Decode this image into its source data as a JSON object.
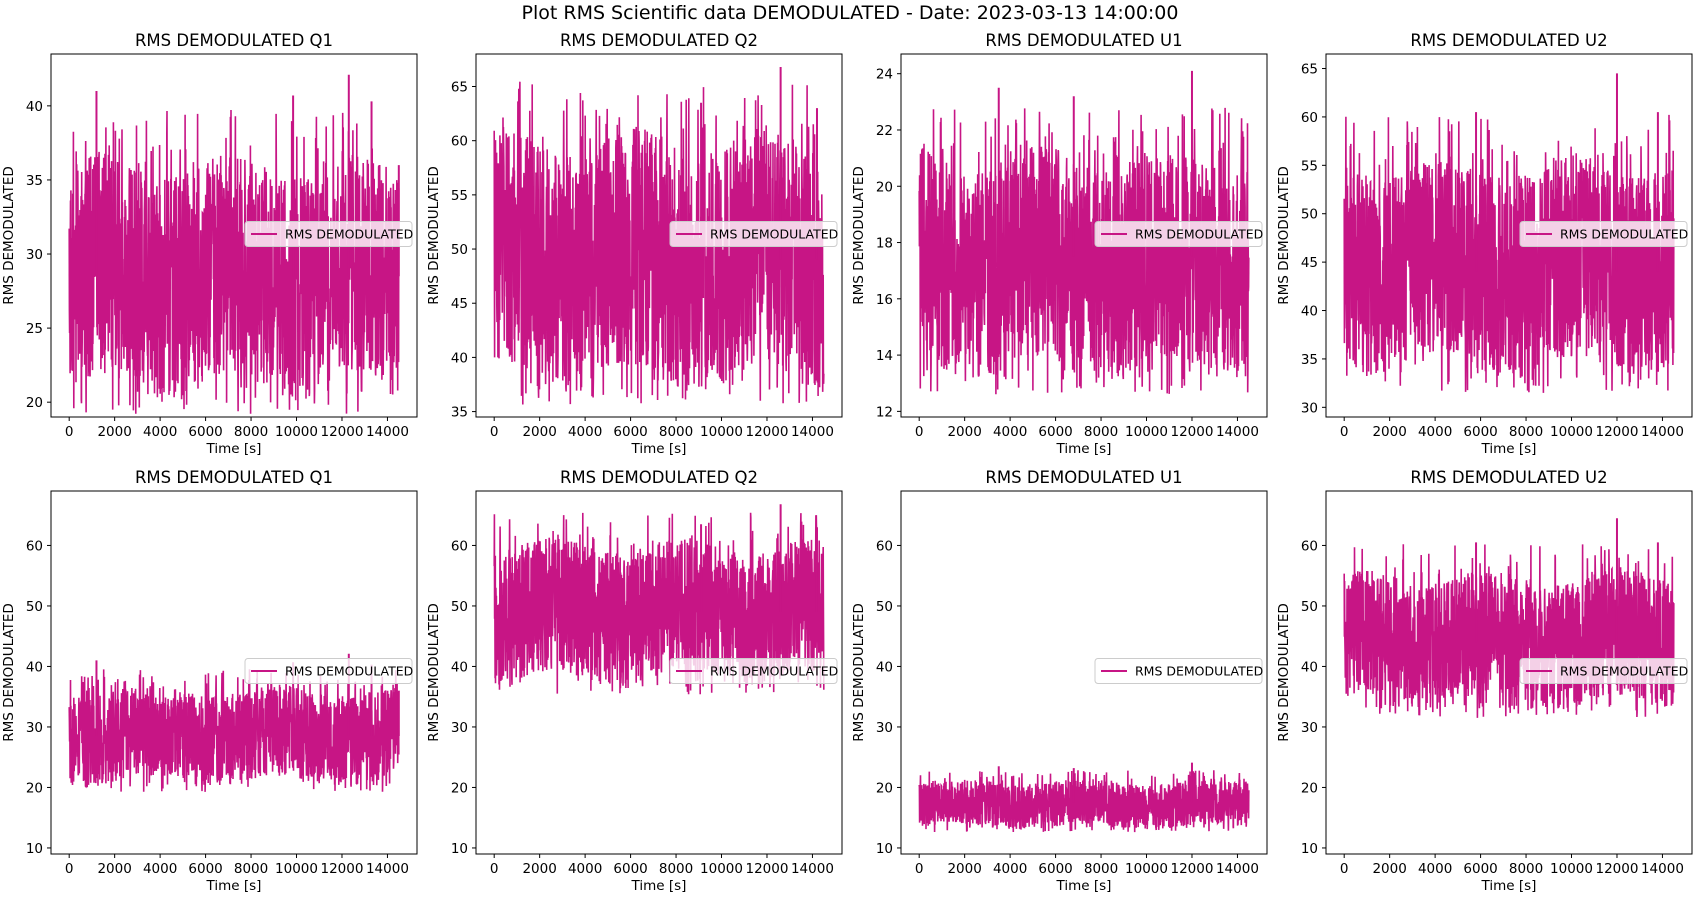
{
  "figure": {
    "title": "Plot RMS Scientific data DEMODULATED - Date: 2023-03-13 14:00:00"
  },
  "colors": {
    "series": "#c71585",
    "axes": "#000000",
    "legend_bg": "#ffffff"
  },
  "chart_data": [
    {
      "type": "line",
      "title": "RMS DEMODULATED Q1",
      "xlabel": "Time [s]",
      "ylabel": "RMS DEMODULATED",
      "xlim": [
        -800,
        15300
      ],
      "ylim": [
        19,
        43.5
      ],
      "xticks": [
        0,
        2000,
        4000,
        6000,
        8000,
        10000,
        12000,
        14000
      ],
      "yticks": [
        20,
        25,
        30,
        35,
        40
      ],
      "legend": "center-right",
      "grid": false,
      "series": [
        {
          "name": "RMS DEMODULATED",
          "center": 28.5,
          "low": 21,
          "high": 36,
          "peaks": [
            [
              1200,
              41
            ],
            [
              9850,
              40.7
            ],
            [
              12300,
              42.1
            ],
            [
              13300,
              40.3
            ],
            [
              14500,
              36
            ]
          ]
        }
      ]
    },
    {
      "type": "line",
      "title": "RMS DEMODULATED Q2",
      "xlabel": "Time [s]",
      "ylabel": "RMS DEMODULATED",
      "xlim": [
        -800,
        15300
      ],
      "ylim": [
        34.5,
        68
      ],
      "xticks": [
        0,
        2000,
        4000,
        6000,
        8000,
        10000,
        12000,
        14000
      ],
      "yticks": [
        35,
        40,
        45,
        50,
        55,
        60,
        65
      ],
      "legend": "center-right",
      "grid": false,
      "series": [
        {
          "name": "RMS DEMODULATED",
          "center": 49,
          "low": 38,
          "high": 60,
          "peaks": [
            [
              12600,
              66.8
            ],
            [
              9100,
              63.5
            ],
            [
              14200,
              63
            ]
          ]
        }
      ]
    },
    {
      "type": "line",
      "title": "RMS DEMODULATED U1",
      "xlabel": "Time [s]",
      "ylabel": "RMS DEMODULATED",
      "xlim": [
        -800,
        15300
      ],
      "ylim": [
        11.8,
        24.7
      ],
      "xticks": [
        0,
        2000,
        4000,
        6000,
        8000,
        10000,
        12000,
        14000
      ],
      "yticks": [
        12,
        14,
        16,
        18,
        20,
        22,
        24
      ],
      "legend": "center-right",
      "grid": false,
      "series": [
        {
          "name": "RMS DEMODULATED",
          "center": 17.5,
          "low": 13.5,
          "high": 21,
          "peaks": [
            [
              3500,
              23.5
            ],
            [
              12000,
              24.1
            ],
            [
              6800,
              23.2
            ]
          ]
        }
      ]
    },
    {
      "type": "line",
      "title": "RMS DEMODULATED U2",
      "xlabel": "Time [s]",
      "ylabel": "RMS DEMODULATED",
      "xlim": [
        -800,
        15300
      ],
      "ylim": [
        29,
        66.5
      ],
      "xticks": [
        0,
        2000,
        4000,
        6000,
        8000,
        10000,
        12000,
        14000
      ],
      "yticks": [
        30,
        35,
        40,
        45,
        50,
        55,
        60,
        65
      ],
      "legend": "center-right",
      "grid": false,
      "series": [
        {
          "name": "RMS DEMODULATED",
          "center": 44,
          "low": 34,
          "high": 55,
          "peaks": [
            [
              12000,
              64.5
            ],
            [
              5800,
              60.5
            ],
            [
              13800,
              60.5
            ]
          ]
        }
      ]
    },
    {
      "type": "line",
      "title": "RMS DEMODULATED Q1",
      "xlabel": "Time [s]",
      "ylabel": "RMS DEMODULATED",
      "xlim": [
        -800,
        15300
      ],
      "ylim": [
        9,
        69
      ],
      "xticks": [
        0,
        2000,
        4000,
        6000,
        8000,
        10000,
        12000,
        14000
      ],
      "yticks": [
        10,
        20,
        30,
        40,
        50,
        60
      ],
      "legend": "center-right",
      "grid": false,
      "series": [
        {
          "name": "RMS DEMODULATED",
          "center": 28.5,
          "low": 21,
          "high": 36,
          "peaks": [
            [
              1200,
              41
            ],
            [
              9850,
              40.7
            ],
            [
              12300,
              42.1
            ],
            [
              13300,
              40.3
            ],
            [
              14500,
              36
            ]
          ]
        }
      ]
    },
    {
      "type": "line",
      "title": "RMS DEMODULATED Q2",
      "xlabel": "Time [s]",
      "ylabel": "RMS DEMODULATED",
      "xlim": [
        -800,
        15300
      ],
      "ylim": [
        9,
        69
      ],
      "xticks": [
        0,
        2000,
        4000,
        6000,
        8000,
        10000,
        12000,
        14000
      ],
      "yticks": [
        10,
        20,
        30,
        40,
        50,
        60
      ],
      "legend": "center-right",
      "grid": false,
      "series": [
        {
          "name": "RMS DEMODULATED",
          "center": 49,
          "low": 38,
          "high": 60,
          "peaks": [
            [
              12600,
              66.8
            ],
            [
              9100,
              63.5
            ],
            [
              14200,
              63
            ]
          ]
        }
      ]
    },
    {
      "type": "line",
      "title": "RMS DEMODULATED U1",
      "xlabel": "Time [s]",
      "ylabel": "RMS DEMODULATED",
      "xlim": [
        -800,
        15300
      ],
      "ylim": [
        9,
        69
      ],
      "xticks": [
        0,
        2000,
        4000,
        6000,
        8000,
        10000,
        12000,
        14000
      ],
      "yticks": [
        10,
        20,
        30,
        40,
        50,
        60
      ],
      "legend": "center-right",
      "grid": false,
      "series": [
        {
          "name": "RMS DEMODULATED",
          "center": 17.5,
          "low": 13.5,
          "high": 21,
          "peaks": [
            [
              3500,
              23.5
            ],
            [
              12000,
              24.1
            ],
            [
              6800,
              23.2
            ]
          ]
        }
      ]
    },
    {
      "type": "line",
      "title": "RMS DEMODULATED U2",
      "xlabel": "Time [s]",
      "ylabel": "RMS DEMODULATED",
      "xlim": [
        -800,
        15300
      ],
      "ylim": [
        9,
        69
      ],
      "xticks": [
        0,
        2000,
        4000,
        6000,
        8000,
        10000,
        12000,
        14000
      ],
      "yticks": [
        10,
        20,
        30,
        40,
        50,
        60
      ],
      "legend": "center-right",
      "grid": false,
      "series": [
        {
          "name": "RMS DEMODULATED",
          "center": 44,
          "low": 34,
          "high": 55,
          "peaks": [
            [
              12000,
              64.5
            ],
            [
              5800,
              60.5
            ],
            [
              13800,
              60.5
            ]
          ]
        }
      ]
    }
  ]
}
